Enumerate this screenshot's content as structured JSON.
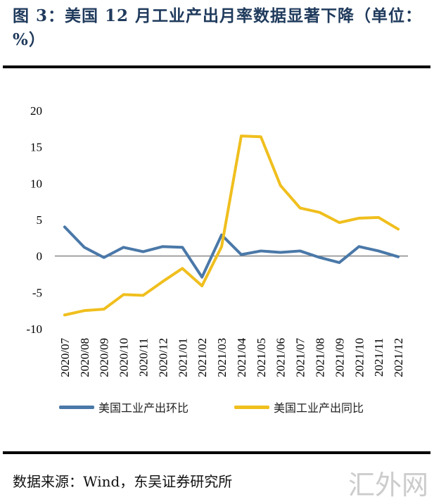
{
  "title": "图 3：美国 12 月工业产出月率数据显著下降（单位：%）",
  "source": "数据来源：Wind，东吴证券研究所",
  "watermark": "汇外网",
  "chart_data": {
    "type": "line",
    "title": "",
    "xlabel": "",
    "ylabel": "",
    "ylim": [
      -10,
      20
    ],
    "yticks": [
      -10,
      -5,
      0,
      5,
      10,
      15,
      20
    ],
    "grid": false,
    "legend_position": "bottom",
    "categories": [
      "2020/07",
      "2020/08",
      "2020/09",
      "2020/10",
      "2020/11",
      "2020/12",
      "2021/01",
      "2021/02",
      "2021/03",
      "2021/04",
      "2021/05",
      "2021/06",
      "2021/07",
      "2021/08",
      "2021/09",
      "2021/10",
      "2021/11",
      "2021/12"
    ],
    "series": [
      {
        "name": "美国工业产出环比",
        "color": "#4a78a8",
        "values": [
          4.0,
          1.2,
          -0.2,
          1.2,
          0.6,
          1.3,
          1.2,
          -2.9,
          2.9,
          0.2,
          0.7,
          0.5,
          0.7,
          -0.2,
          -0.9,
          1.3,
          0.7,
          -0.1
        ]
      },
      {
        "name": "美国工业产出同比",
        "color": "#f0bf1e",
        "values": [
          -8.1,
          -7.5,
          -7.3,
          -5.3,
          -5.4,
          -3.5,
          -1.7,
          -4.1,
          1.3,
          16.5,
          16.4,
          9.7,
          6.6,
          6.0,
          4.6,
          5.2,
          5.3,
          3.7
        ]
      }
    ]
  }
}
